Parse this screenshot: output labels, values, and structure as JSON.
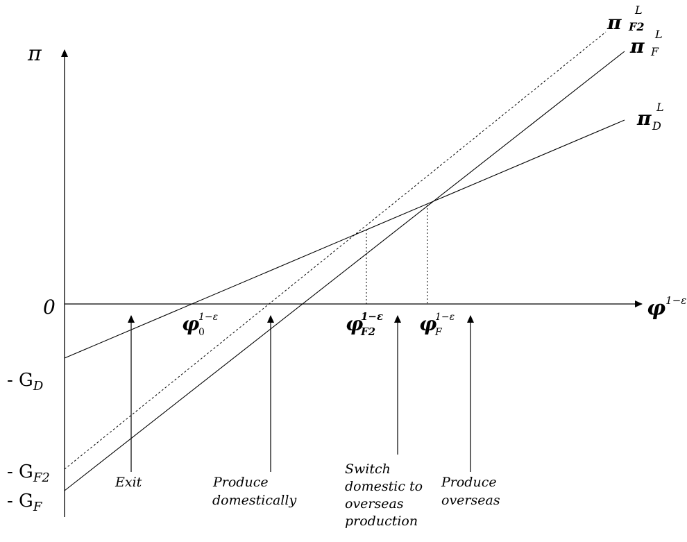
{
  "axes": {
    "y_symbol": "π",
    "x_base": "φ",
    "x_exponent": "1−ε",
    "origin": "0"
  },
  "intercepts": {
    "gd": {
      "prefix": "- G",
      "sub": "D"
    },
    "gf2": {
      "prefix": "- G",
      "sub": "F2"
    },
    "gf": {
      "prefix": "- G",
      "sub": "F"
    }
  },
  "curves": {
    "pid": {
      "base": "π",
      "sup": "L",
      "sub": "D"
    },
    "pif": {
      "base": "π",
      "sup": "L",
      "sub": "F"
    },
    "pif2": {
      "base": "π",
      "sup": "L",
      "sub": "F2"
    }
  },
  "thresholds": {
    "phi0": {
      "base": "φ",
      "sub": "0",
      "sup": "1−ε"
    },
    "phif2": {
      "base": "φ",
      "sub": "F2",
      "sup": "1−ε"
    },
    "phif": {
      "base": "φ",
      "sub": "F",
      "sup": "1−ε"
    }
  },
  "regions": {
    "exit": [
      "Exit"
    ],
    "domestic": [
      "Produce",
      "domestically"
    ],
    "switch": [
      "Switch",
      "domestic to",
      "overseas",
      "production"
    ],
    "overseas": [
      "Produce",
      "overseas"
    ]
  }
}
